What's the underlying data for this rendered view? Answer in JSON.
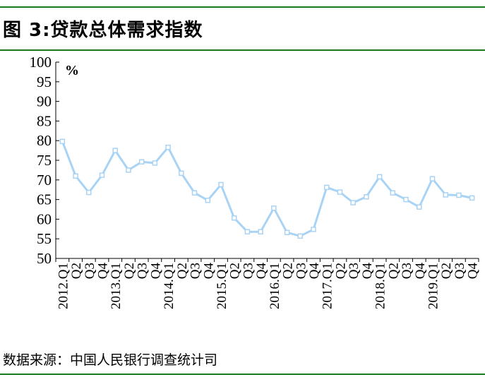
{
  "header": {
    "title": "图 3:贷款总体需求指数"
  },
  "footer": {
    "source": "数据来源：中国人民银行调查统计司"
  },
  "colors": {
    "rule": "#1a7a1a",
    "series": "#a9d3f5"
  },
  "chart_data": {
    "type": "line",
    "unit_label": "%",
    "ylim": [
      50,
      100
    ],
    "yticks": [
      50,
      55,
      60,
      65,
      70,
      75,
      80,
      85,
      90,
      95,
      100
    ],
    "grid": false,
    "categories": [
      "2012.Q1",
      "Q2",
      "Q3",
      "Q4",
      "2013.Q1",
      "Q2",
      "Q3",
      "Q4",
      "2014.Q1",
      "Q2",
      "Q3",
      "Q4",
      "2015.Q1",
      "Q2",
      "Q3",
      "Q4",
      "2016.Q1",
      "Q2",
      "Q3",
      "Q4",
      "2017.Q1",
      "Q2",
      "Q3",
      "Q4",
      "2018.Q1",
      "Q2",
      "Q3",
      "Q4",
      "2019.Q1",
      "Q2",
      "Q3",
      "Q4"
    ],
    "series": [
      {
        "values": [
          79.8,
          71.0,
          66.8,
          71.2,
          77.5,
          72.5,
          74.6,
          74.3,
          78.3,
          71.7,
          66.7,
          64.8,
          68.8,
          60.3,
          56.8,
          56.8,
          62.8,
          56.6,
          55.7,
          57.4,
          68.1,
          66.9,
          64.2,
          65.7,
          70.8,
          66.7,
          65.0,
          63.1,
          70.3,
          66.2,
          66.1,
          65.4
        ]
      }
    ]
  }
}
